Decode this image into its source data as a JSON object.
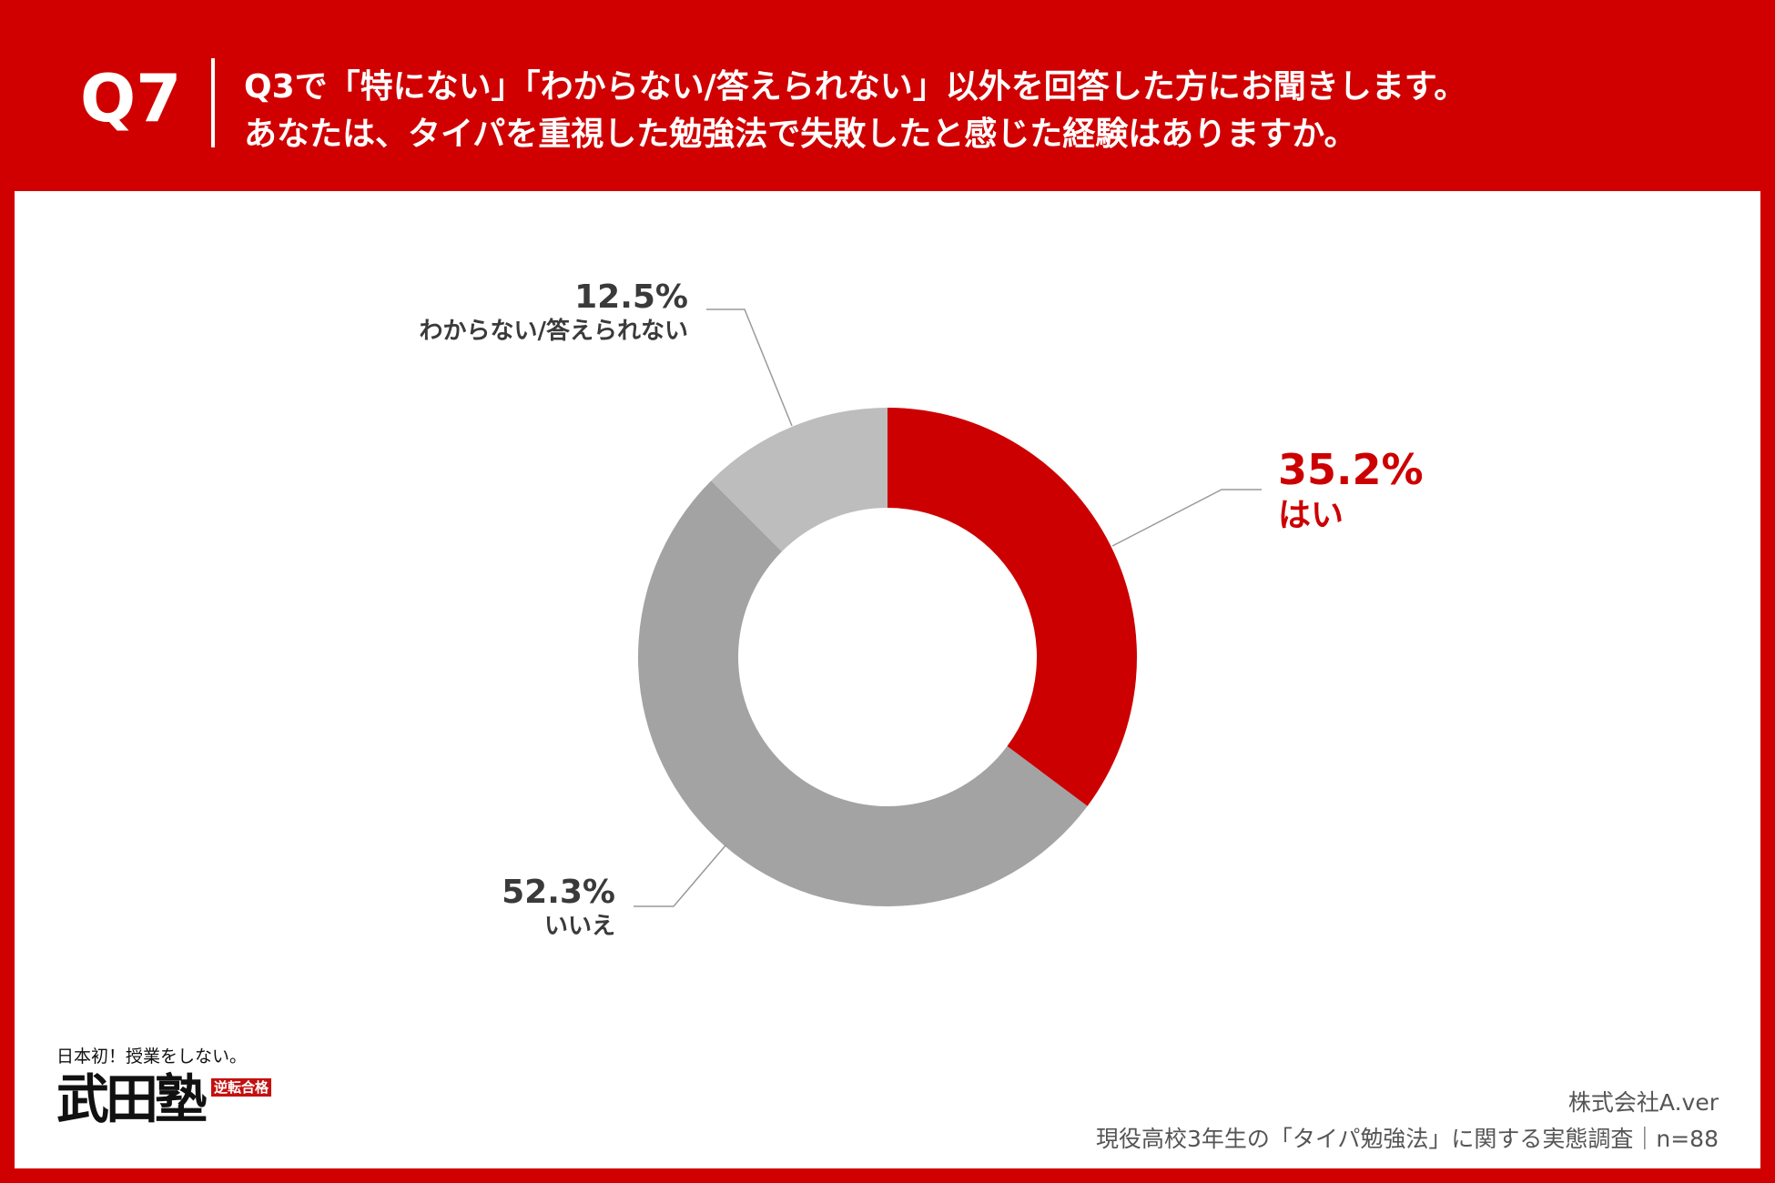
{
  "header": {
    "qnum": "Q7",
    "question_line1": "Q3で「特にない」「わからない/答えられない」以外を回答した方にお聞きします。",
    "question_line2": "あなたは、タイパを重視した勉強法で失敗したと感じた経験はありますか。"
  },
  "chart_data": {
    "type": "pie",
    "style": "donut",
    "categories": [
      "はい",
      "いいえ",
      "わからない/答えられない"
    ],
    "values": [
      35.2,
      52.3,
      12.5
    ],
    "labels": [
      "35.2%",
      "52.3%",
      "12.5%"
    ],
    "colors": [
      "#cc0000",
      "#a3a3a3",
      "#bdbdbd"
    ],
    "label_colors": [
      "#cc0000",
      "#3a3a3a",
      "#3a3a3a"
    ],
    "start": "12 o'clock",
    "direction": "clockwise"
  },
  "logo": {
    "tagline": "日本初！授業をしない。",
    "name": "武田塾",
    "seal": "逆転合格"
  },
  "footer": {
    "company": "株式会社A.ver",
    "survey": "現役高校3年生の「タイパ勉強法」に関する実態調査｜n=88"
  }
}
